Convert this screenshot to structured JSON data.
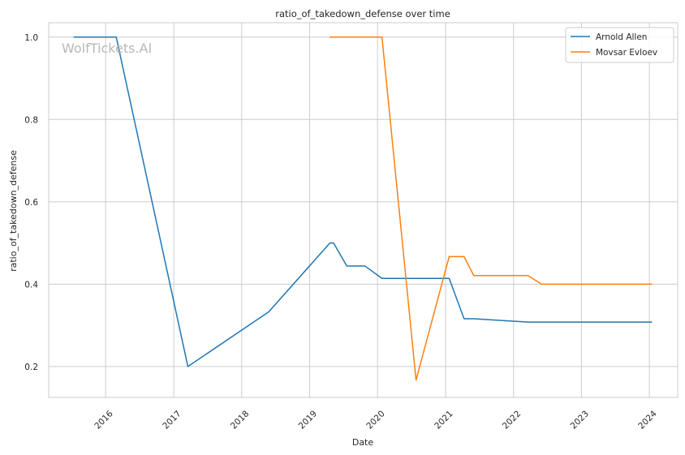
{
  "chart_data": {
    "type": "line",
    "title": "ratio_of_takedown_defense over time",
    "xlabel": "Date",
    "ylabel": "ratio_of_takedown_defense",
    "watermark": "WolfTickets.AI",
    "x_ticks": [
      "2016",
      "2017",
      "2018",
      "2019",
      "2020",
      "2021",
      "2022",
      "2023",
      "2024"
    ],
    "y_ticks": [
      "0.2",
      "0.4",
      "0.6",
      "0.8",
      "1.0"
    ],
    "xlim": [
      "2015-03-01",
      "2024-06-01"
    ],
    "ylim": [
      0.125,
      1.035
    ],
    "grid": true,
    "legend_position": "top-right",
    "series": [
      {
        "name": "Arnold Allen",
        "color": "#1f77b4",
        "points": [
          [
            "2015-07-15",
            1.0
          ],
          [
            "2016-02-27",
            1.0
          ],
          [
            "2017-03-18",
            0.2
          ],
          [
            "2018-05-27",
            0.333
          ],
          [
            "2019-04-20",
            0.5
          ],
          [
            "2019-05-10",
            0.5
          ],
          [
            "2019-07-20",
            0.444
          ],
          [
            "2019-10-26",
            0.444
          ],
          [
            "2020-01-25",
            0.414
          ],
          [
            "2021-01-01",
            0.414
          ],
          [
            "2021-01-20",
            0.414
          ],
          [
            "2021-04-10",
            0.316
          ],
          [
            "2021-06-01",
            0.316
          ],
          [
            "2022-03-19",
            0.308
          ],
          [
            "2024-01-13",
            0.308
          ]
        ]
      },
      {
        "name": "Movsar Evloev",
        "color": "#ff7f0e",
        "points": [
          [
            "2019-04-20",
            1.0
          ],
          [
            "2020-01-25",
            1.0
          ],
          [
            "2020-07-26",
            0.167
          ],
          [
            "2021-01-20",
            0.467
          ],
          [
            "2021-04-10",
            0.467
          ],
          [
            "2021-06-01",
            0.421
          ],
          [
            "2022-03-19",
            0.421
          ],
          [
            "2022-06-01",
            0.4
          ],
          [
            "2024-01-13",
            0.4
          ]
        ]
      }
    ]
  }
}
